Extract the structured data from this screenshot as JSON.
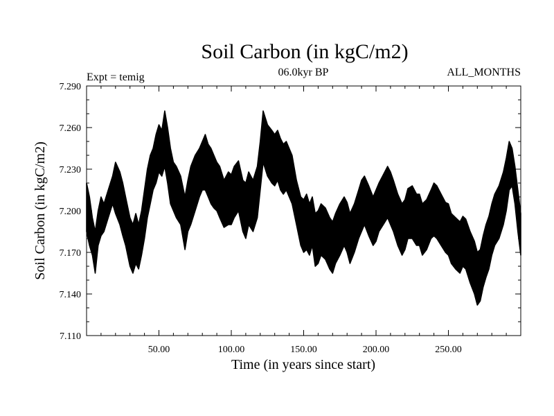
{
  "chart_data": {
    "type": "line",
    "title": "Soil Carbon (in kgC/m2)",
    "subtitle_left": "Expt = temig",
    "subtitle_center": "06.0kyr BP",
    "subtitle_right": "ALL_MONTHS",
    "xlabel": "Time (in years since start)",
    "ylabel": "Soil Carbon (in kgC/m2)",
    "xlim": [
      0,
      300
    ],
    "ylim": [
      7.11,
      7.29
    ],
    "x_ticks": [
      50,
      100,
      150,
      200,
      250
    ],
    "x_tick_labels": [
      "50.00",
      "100.00",
      "150.00",
      "200.00",
      "250.00"
    ],
    "y_ticks": [
      7.11,
      7.14,
      7.17,
      7.2,
      7.23,
      7.26,
      7.29
    ],
    "y_tick_labels": [
      "7.110",
      "7.140",
      "7.170",
      "7.200",
      "7.230",
      "7.260",
      "7.290"
    ],
    "line_color": "#000000",
    "series": [
      {
        "name": "Soil Carbon",
        "x": [
          0,
          2,
          4,
          6,
          8,
          10,
          12,
          15,
          18,
          20,
          23,
          25,
          27,
          30,
          32,
          34,
          36,
          38,
          40,
          42,
          44,
          46,
          48,
          50,
          52,
          54,
          56,
          58,
          60,
          62,
          65,
          68,
          70,
          72,
          75,
          78,
          80,
          82,
          84,
          86,
          88,
          90,
          92,
          95,
          98,
          100,
          102,
          105,
          108,
          110,
          112,
          115,
          118,
          120,
          122,
          125,
          128,
          130,
          132,
          134,
          136,
          138,
          140,
          142,
          145,
          148,
          150,
          152,
          154,
          156,
          158,
          160,
          162,
          165,
          168,
          170,
          172,
          175,
          178,
          180,
          182,
          185,
          188,
          190,
          192,
          195,
          198,
          200,
          202,
          205,
          208,
          210,
          212,
          215,
          218,
          220,
          222,
          225,
          228,
          230,
          232,
          235,
          238,
          240,
          242,
          245,
          248,
          250,
          252,
          255,
          258,
          260,
          262,
          265,
          268,
          270,
          272,
          274,
          276,
          278,
          280,
          282,
          285,
          288,
          290,
          292,
          294,
          296,
          298,
          300
        ],
        "ymin": [
          7.185,
          7.175,
          7.168,
          7.155,
          7.175,
          7.182,
          7.185,
          7.195,
          7.205,
          7.198,
          7.19,
          7.182,
          7.175,
          7.16,
          7.155,
          7.162,
          7.158,
          7.168,
          7.18,
          7.195,
          7.205,
          7.215,
          7.22,
          7.228,
          7.225,
          7.232,
          7.22,
          7.205,
          7.2,
          7.195,
          7.19,
          7.172,
          7.185,
          7.19,
          7.2,
          7.21,
          7.215,
          7.215,
          7.21,
          7.205,
          7.202,
          7.2,
          7.195,
          7.188,
          7.19,
          7.19,
          7.195,
          7.2,
          7.185,
          7.18,
          7.19,
          7.185,
          7.195,
          7.215,
          7.235,
          7.225,
          7.22,
          7.218,
          7.222,
          7.215,
          7.212,
          7.215,
          7.21,
          7.205,
          7.19,
          7.175,
          7.17,
          7.172,
          7.168,
          7.175,
          7.16,
          7.162,
          7.168,
          7.165,
          7.158,
          7.155,
          7.162,
          7.168,
          7.175,
          7.17,
          7.162,
          7.17,
          7.18,
          7.185,
          7.19,
          7.182,
          7.175,
          7.178,
          7.185,
          7.19,
          7.195,
          7.19,
          7.185,
          7.175,
          7.168,
          7.172,
          7.18,
          7.18,
          7.175,
          7.175,
          7.168,
          7.172,
          7.18,
          7.182,
          7.18,
          7.175,
          7.17,
          7.168,
          7.162,
          7.158,
          7.155,
          7.16,
          7.158,
          7.148,
          7.14,
          7.132,
          7.135,
          7.145,
          7.152,
          7.158,
          7.168,
          7.175,
          7.18,
          7.19,
          7.2,
          7.215,
          7.218,
          7.205,
          7.185,
          7.168
        ],
        "ymax": [
          7.22,
          7.21,
          7.195,
          7.185,
          7.2,
          7.21,
          7.205,
          7.215,
          7.225,
          7.235,
          7.228,
          7.22,
          7.21,
          7.195,
          7.19,
          7.198,
          7.19,
          7.2,
          7.215,
          7.23,
          7.24,
          7.245,
          7.255,
          7.262,
          7.258,
          7.272,
          7.26,
          7.245,
          7.235,
          7.232,
          7.225,
          7.21,
          7.222,
          7.232,
          7.24,
          7.245,
          7.25,
          7.255,
          7.248,
          7.245,
          7.24,
          7.235,
          7.232,
          7.222,
          7.228,
          7.226,
          7.232,
          7.236,
          7.222,
          7.22,
          7.228,
          7.222,
          7.232,
          7.25,
          7.272,
          7.262,
          7.258,
          7.255,
          7.258,
          7.252,
          7.248,
          7.25,
          7.245,
          7.24,
          7.222,
          7.21,
          7.208,
          7.212,
          7.205,
          7.21,
          7.198,
          7.2,
          7.205,
          7.202,
          7.195,
          7.192,
          7.198,
          7.205,
          7.21,
          7.206,
          7.198,
          7.205,
          7.215,
          7.222,
          7.225,
          7.218,
          7.21,
          7.215,
          7.22,
          7.226,
          7.232,
          7.228,
          7.222,
          7.212,
          7.205,
          7.208,
          7.216,
          7.218,
          7.212,
          7.212,
          7.205,
          7.208,
          7.215,
          7.22,
          7.218,
          7.212,
          7.206,
          7.205,
          7.198,
          7.195,
          7.192,
          7.196,
          7.194,
          7.185,
          7.178,
          7.17,
          7.172,
          7.182,
          7.19,
          7.196,
          7.205,
          7.212,
          7.218,
          7.228,
          7.238,
          7.25,
          7.245,
          7.232,
          7.215,
          7.198
        ]
      }
    ]
  }
}
